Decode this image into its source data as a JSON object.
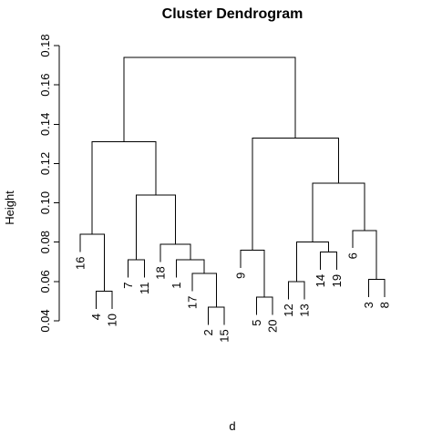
{
  "chart_data": {
    "type": "dendrogram",
    "title": "Cluster Dendrogram",
    "xlabel": "d",
    "ylabel": "Height",
    "ylim": [
      0.04,
      0.18
    ],
    "yticks": [
      "0.04",
      "0.06",
      "0.08",
      "0.10",
      "0.12",
      "0.14",
      "0.16",
      "0.18"
    ],
    "yticks_values": [
      0.04,
      0.06,
      0.08,
      0.1,
      0.12,
      0.14,
      0.16,
      0.18
    ],
    "leaf_order": [
      "16",
      "4",
      "10",
      "7",
      "11",
      "18",
      "1",
      "17",
      "2",
      "15",
      "9",
      "5",
      "20",
      "12",
      "13",
      "14",
      "19",
      "6",
      "3",
      "8"
    ],
    "merges": [
      {
        "left": "4",
        "right": "10",
        "height": 0.055
      },
      {
        "left": "16",
        "right": "m1",
        "height": 0.084
      },
      {
        "left": "7",
        "right": "11",
        "height": 0.071
      },
      {
        "left": "2",
        "right": "15",
        "height": 0.047
      },
      {
        "left": "17",
        "right": "m4",
        "height": 0.064
      },
      {
        "left": "1",
        "right": "m5",
        "height": 0.071
      },
      {
        "left": "18",
        "right": "m6",
        "height": 0.079
      },
      {
        "left": "m3",
        "right": "m7",
        "height": 0.104
      },
      {
        "left": "m2",
        "right": "m8",
        "height": 0.131
      },
      {
        "left": "5",
        "right": "20",
        "height": 0.052
      },
      {
        "left": "9",
        "right": "m10",
        "height": 0.076
      },
      {
        "left": "12",
        "right": "13",
        "height": 0.06
      },
      {
        "left": "14",
        "right": "19",
        "height": 0.075
      },
      {
        "left": "m12",
        "right": "m13",
        "height": 0.08
      },
      {
        "left": "3",
        "right": "8",
        "height": 0.061
      },
      {
        "left": "6",
        "right": "m15",
        "height": 0.086
      },
      {
        "left": "m14",
        "right": "m16",
        "height": 0.11
      },
      {
        "left": "m11",
        "right": "m17",
        "height": 0.133
      },
      {
        "left": "m9",
        "right": "m18",
        "height": 0.174
      }
    ]
  }
}
